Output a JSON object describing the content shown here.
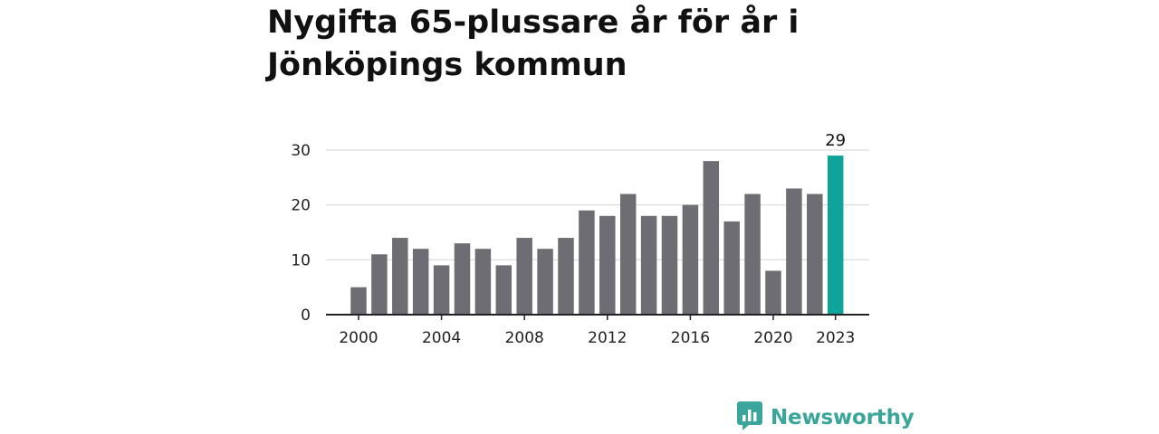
{
  "title": "Nygifta 65-plussare år för år i Jönköpings kommun",
  "brand": {
    "name": "Newsworthy",
    "icon": "newsworthy-logo-icon",
    "color": "#3aa59a"
  },
  "chart_data": {
    "type": "bar",
    "title": "Nygifta 65-plussare år för år i Jönköpings kommun",
    "xlabel": "",
    "ylabel": "",
    "categories": [
      "2000",
      "2001",
      "2002",
      "2003",
      "2004",
      "2005",
      "2006",
      "2007",
      "2008",
      "2009",
      "2010",
      "2011",
      "2012",
      "2013",
      "2014",
      "2015",
      "2016",
      "2017",
      "2018",
      "2019",
      "2020",
      "2021",
      "2022",
      "2023"
    ],
    "values": [
      5,
      11,
      14,
      12,
      9,
      13,
      12,
      9,
      14,
      12,
      14,
      19,
      18,
      22,
      18,
      18,
      20,
      28,
      17,
      22,
      8,
      23,
      22,
      29
    ],
    "ylim": [
      0,
      30
    ],
    "yticks": [
      0,
      10,
      20,
      30
    ],
    "xticks": [
      "2000",
      "2004",
      "2008",
      "2012",
      "2016",
      "2020",
      "2023"
    ],
    "highlight": {
      "category": "2023",
      "label": "29",
      "color": "#0fa39a"
    },
    "bar_color": "#6e6d73",
    "grid": true
  }
}
